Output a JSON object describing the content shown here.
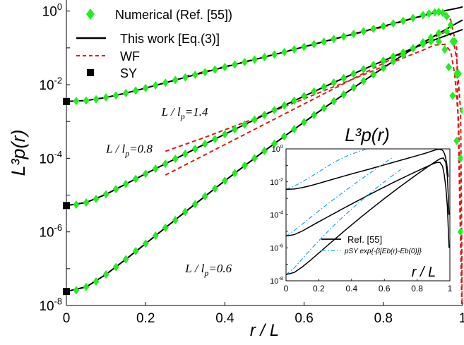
{
  "chart_data": [
    {
      "type": "line",
      "xlabel": "r / L",
      "ylabel": "L³p(r)",
      "yscale": "log",
      "xlim": [
        0,
        1
      ],
      "ylim": [
        1e-08,
        2
      ],
      "x_ticks": [
        "0",
        "0.2",
        "0.4",
        "0.6",
        "0.8",
        "1"
      ],
      "y_ticks": [
        {
          "base": "10",
          "exp": "-8"
        },
        {
          "base": "10",
          "exp": "-6"
        },
        {
          "base": "10",
          "exp": "-4"
        },
        {
          "base": "10",
          "exp": "-2"
        },
        {
          "base": "10",
          "exp": "0"
        }
      ],
      "legend": {
        "placement": "top-left",
        "entries": [
          {
            "label": "Numerical (Ref. [55])",
            "marker": "diamond",
            "color": "#22ee22"
          },
          {
            "label": "This work [Eq.(3)]",
            "marker": "line",
            "color": "#000000"
          },
          {
            "label": "WF",
            "marker": "dashed",
            "color": "#e01a1a"
          },
          {
            "label": "SY",
            "marker": "square",
            "color": "#000000"
          }
        ]
      },
      "annotations": [
        {
          "text": "L / lp=1.4",
          "main": "L / l",
          "sub": "p",
          "rest": "=1.4",
          "x": 0.24,
          "y": 0.00145
        },
        {
          "text": "L / lp=0.8",
          "main": "L / l",
          "sub": "p",
          "rest": "=0.8",
          "x": 0.1,
          "y": 0.00014
        },
        {
          "text": "L / lp=0.6",
          "main": "L / l",
          "sub": "p",
          "rest": "=0.6",
          "x": 0.3,
          "y": 8e-08
        }
      ],
      "series": [
        {
          "group": "L / lp=1.4",
          "sy_value": 0.0035,
          "x": [
            0,
            0.05,
            0.1,
            0.15,
            0.2,
            0.25,
            0.3,
            0.35,
            0.4,
            0.45,
            0.5,
            0.55,
            0.6,
            0.65,
            0.7,
            0.75,
            0.8,
            0.85,
            0.88,
            0.91,
            0.93,
            0.95,
            0.96,
            0.97,
            0.98,
            0.99,
            0.995,
            1.0
          ],
          "model": [
            0.0035,
            0.0037,
            0.0045,
            0.0059,
            0.0081,
            0.0113,
            0.0158,
            0.0219,
            0.0302,
            0.0412,
            0.0562,
            0.077,
            0.107,
            0.148,
            0.204,
            0.282,
            0.39,
            0.54,
            0.66,
            0.8,
            0.9,
            1.0,
            1.05,
            1.1,
            1.16,
            1.22,
            1.26,
            1.3
          ],
          "numerical_x": [
            0,
            0.025,
            0.05,
            0.075,
            0.1,
            0.125,
            0.15,
            0.175,
            0.2,
            0.225,
            0.25,
            0.275,
            0.3,
            0.325,
            0.35,
            0.375,
            0.4,
            0.425,
            0.45,
            0.475,
            0.5,
            0.525,
            0.55,
            0.575,
            0.6,
            0.625,
            0.65,
            0.675,
            0.7,
            0.725,
            0.75,
            0.775,
            0.8,
            0.825,
            0.85,
            0.875,
            0.9,
            0.915,
            0.93,
            0.94,
            0.95,
            0.96,
            0.97,
            0.98,
            0.99,
            1.0
          ],
          "numerical_y": [
            0.0035,
            0.0036,
            0.0037,
            0.004,
            0.0045,
            0.0051,
            0.0059,
            0.0069,
            0.0081,
            0.0096,
            0.0113,
            0.0134,
            0.0158,
            0.0186,
            0.0219,
            0.0257,
            0.0302,
            0.0353,
            0.0412,
            0.0481,
            0.0562,
            0.0659,
            0.077,
            0.091,
            0.107,
            0.126,
            0.148,
            0.174,
            0.204,
            0.24,
            0.282,
            0.33,
            0.39,
            0.46,
            0.54,
            0.65,
            0.78,
            0.86,
            0.93,
            0.95,
            0.9,
            0.72,
            0.42,
            0.15,
            0.02,
            0.002
          ],
          "wf_x": [
            0.3,
            0.4,
            0.5,
            0.6,
            0.7,
            0.8,
            0.88,
            0.92,
            0.95,
            0.97,
            0.985,
            1.0
          ],
          "wf_y": [
            0.0168,
            0.031,
            0.057,
            0.107,
            0.2,
            0.37,
            0.65,
            0.85,
            0.95,
            0.58,
            0.1,
            1e-09
          ]
        },
        {
          "group": "L / lp=0.8",
          "sy_value": 5.2e-06,
          "x": [
            0,
            0.05,
            0.1,
            0.15,
            0.2,
            0.25,
            0.3,
            0.35,
            0.4,
            0.45,
            0.5,
            0.55,
            0.6,
            0.65,
            0.7,
            0.75,
            0.8,
            0.85,
            0.88,
            0.91,
            0.93,
            0.95,
            0.96,
            0.97,
            0.98,
            0.99,
            0.995,
            1.0
          ],
          "model": [
            5.2e-06,
            6.3e-06,
            1.05e-05,
            2e-05,
            3.8e-05,
            7.1e-05,
            0.000132,
            0.000245,
            0.000451,
            0.000827,
            0.00151,
            0.00273,
            0.00488,
            0.00864,
            0.0151,
            0.0261,
            0.0446,
            0.0755,
            0.102,
            0.139,
            0.167,
            0.2,
            0.219,
            0.24,
            0.263,
            0.288,
            0.302,
            0.316
          ],
          "numerical_x": [
            0,
            0.025,
            0.05,
            0.075,
            0.1,
            0.125,
            0.15,
            0.175,
            0.2,
            0.225,
            0.25,
            0.275,
            0.3,
            0.325,
            0.35,
            0.375,
            0.4,
            0.425,
            0.45,
            0.475,
            0.5,
            0.525,
            0.55,
            0.575,
            0.6,
            0.625,
            0.65,
            0.675,
            0.7,
            0.725,
            0.75,
            0.775,
            0.8,
            0.825,
            0.85,
            0.875,
            0.9,
            0.92,
            0.94,
            0.955,
            0.965,
            0.975,
            0.985,
            0.995
          ],
          "numerical_y": [
            5.2e-06,
            5.5e-06,
            6.3e-06,
            7.9e-06,
            1.05e-05,
            1.45e-05,
            2e-05,
            2.75e-05,
            3.8e-05,
            5.2e-05,
            7.1e-05,
            9.7e-05,
            0.000132,
            0.00018,
            0.000245,
            0.000333,
            0.000451,
            0.000611,
            0.000827,
            0.00112,
            0.00151,
            0.00204,
            0.00273,
            0.00366,
            0.00488,
            0.0065,
            0.00864,
            0.0114,
            0.0151,
            0.0199,
            0.0261,
            0.0342,
            0.0446,
            0.058,
            0.0755,
            0.098,
            0.127,
            0.15,
            0.148,
            0.09,
            0.03,
            0.005,
            0.0003,
            1e-06
          ],
          "wf_x": [
            0.25,
            0.35,
            0.45,
            0.55,
            0.65,
            0.75,
            0.85,
            0.9,
            0.93,
            0.955,
            0.97,
            0.98,
            0.99,
            1.0
          ],
          "wf_y": [
            0.000155,
            0.000372,
            0.00095,
            0.00251,
            0.00684,
            0.0186,
            0.0532,
            0.087,
            0.12,
            0.125,
            0.08,
            0.02,
            0.001,
            1e-08
          ]
        },
        {
          "group": "L / lp=0.6",
          "sy_value": 2.4e-08,
          "x": [
            0,
            0.05,
            0.1,
            0.15,
            0.2,
            0.25,
            0.3,
            0.35,
            0.4,
            0.45,
            0.5,
            0.55,
            0.6,
            0.65,
            0.7,
            0.75,
            0.8,
            0.85,
            0.88,
            0.91,
            0.93,
            0.95,
            0.96,
            0.97,
            0.98,
            0.99,
            0.995,
            1.0
          ],
          "model": [
            2.4e-08,
            3.2e-08,
            7e-08,
            1.8e-07,
            4.8e-07,
            1.3e-06,
            3.5e-06,
            9.3e-06,
            2.45e-05,
            6.3e-05,
            0.000159,
            0.000394,
            0.000962,
            0.00231,
            0.00544,
            0.0126,
            0.0288,
            0.0645,
            0.102,
            0.16,
            0.214,
            0.285,
            0.328,
            0.378,
            0.435,
            0.5,
            0.535,
            0.57
          ],
          "numerical_x": [
            0,
            0.025,
            0.05,
            0.075,
            0.1,
            0.125,
            0.15,
            0.175,
            0.2,
            0.225,
            0.25,
            0.275,
            0.3,
            0.325,
            0.35,
            0.375,
            0.4,
            0.425,
            0.45,
            0.475,
            0.5,
            0.525,
            0.55,
            0.575,
            0.6,
            0.625,
            0.65,
            0.675,
            0.7,
            0.725,
            0.75,
            0.775,
            0.8,
            0.825,
            0.85,
            0.875,
            0.9,
            0.92,
            0.94,
            0.96,
            0.975,
            0.985,
            0.995
          ],
          "numerical_y": [
            2.4e-08,
            2.6e-08,
            3.2e-08,
            4.5e-08,
            7e-08,
            1.1e-07,
            1.8e-07,
            3e-07,
            4.8e-07,
            7.9e-07,
            1.3e-06,
            2.1e-06,
            3.5e-06,
            5.7e-06,
            9.3e-06,
            1.5e-05,
            2.45e-05,
            3.95e-05,
            6.3e-05,
            0.0001,
            0.000159,
            0.00025,
            0.000394,
            0.000618,
            0.000962,
            0.0015,
            0.00231,
            0.00355,
            0.00544,
            0.0083,
            0.0126,
            0.0191,
            0.0288,
            0.0432,
            0.0645,
            0.096,
            0.142,
            0.19,
            0.25,
            0.28,
            0.15,
            0.02,
            0.0001
          ],
          "wf_x": [
            0.25,
            0.35,
            0.45,
            0.55,
            0.65,
            0.75,
            0.85,
            0.9,
            0.93,
            0.96,
            0.975,
            0.985,
            0.995,
            1.0
          ],
          "wf_y": [
            3.5e-05,
            0.000125,
            0.000445,
            0.00159,
            0.00566,
            0.0202,
            0.072,
            0.135,
            0.2,
            0.28,
            0.2,
            0.05,
            0.002,
            1e-09
          ]
        }
      ]
    },
    {
      "type": "line",
      "title": "L³p(r)",
      "xlabel": "r / L",
      "yscale": "log",
      "xlim": [
        0,
        1
      ],
      "ylim": [
        1e-08,
        1
      ],
      "x_ticks": [
        "0",
        "0.2",
        "0.4",
        "0.6",
        "0.8",
        "1"
      ],
      "y_ticks": [
        {
          "base": "10",
          "exp": "-8"
        },
        {
          "base": "10",
          "exp": "-6"
        },
        {
          "base": "10",
          "exp": "-4"
        },
        {
          "base": "10",
          "exp": "-2"
        },
        {
          "base": "10",
          "exp": "0"
        }
      ],
      "legend": {
        "placement": "bottom-right",
        "entries": [
          {
            "label": "Ref. [55]",
            "marker": "line",
            "color": "#000000"
          },
          {
            "label": "pSY exp{-β[Eb(r)-Eb(0)]}",
            "marker": "dash-dot",
            "color": "#1aa6d8"
          }
        ]
      },
      "series": [
        {
          "group": "L / lp=1.4",
          "x": [
            0,
            0.05,
            0.1,
            0.15,
            0.2,
            0.25,
            0.3,
            0.35,
            0.4,
            0.45,
            0.5,
            0.55,
            0.6,
            0.65,
            0.7,
            0.75,
            0.8,
            0.85,
            0.88,
            0.91,
            0.93,
            0.95,
            0.96,
            0.97,
            0.98,
            0.99
          ],
          "ref": [
            0.0035,
            0.0037,
            0.0045,
            0.0059,
            0.0081,
            0.0113,
            0.0158,
            0.0219,
            0.0302,
            0.0412,
            0.0562,
            0.077,
            0.107,
            0.148,
            0.204,
            0.282,
            0.39,
            0.54,
            0.68,
            0.85,
            0.95,
            0.9,
            0.72,
            0.42,
            0.15,
            0.02
          ],
          "approx_x": [
            0,
            0.05,
            0.1,
            0.15,
            0.2,
            0.25,
            0.3,
            0.35,
            0.4,
            0.45,
            0.5,
            0.55
          ],
          "approx": [
            0.0035,
            0.0055,
            0.0102,
            0.0199,
            0.0405,
            0.085,
            0.166,
            0.296,
            0.48,
            0.72,
            1.03,
            1.45
          ]
        },
        {
          "group": "L / lp=0.8",
          "x": [
            0,
            0.05,
            0.1,
            0.15,
            0.2,
            0.25,
            0.3,
            0.35,
            0.4,
            0.45,
            0.5,
            0.55,
            0.6,
            0.65,
            0.7,
            0.75,
            0.8,
            0.85,
            0.9,
            0.92,
            0.94,
            0.955,
            0.965,
            0.975,
            0.985,
            0.995
          ],
          "ref": [
            5.2e-06,
            6.3e-06,
            1.05e-05,
            2e-05,
            3.8e-05,
            7.1e-05,
            0.000132,
            0.000245,
            0.000451,
            0.000827,
            0.00151,
            0.00273,
            0.00488,
            0.00864,
            0.0151,
            0.0261,
            0.0446,
            0.0755,
            0.127,
            0.15,
            0.148,
            0.09,
            0.03,
            0.005,
            0.0003,
            1e-06
          ],
          "approx_x": [
            0,
            0.05,
            0.1,
            0.15,
            0.2,
            0.25,
            0.3,
            0.35,
            0.4,
            0.45,
            0.5,
            0.55,
            0.6,
            0.65
          ],
          "approx": [
            5.2e-06,
            1.1e-05,
            2.75e-05,
            7e-05,
            0.000174,
            0.000425,
            0.00102,
            0.0024,
            0.0055,
            0.0125,
            0.028,
            0.062,
            0.138,
            0.3
          ]
        },
        {
          "group": "L / lp=0.6",
          "x": [
            0,
            0.05,
            0.1,
            0.15,
            0.2,
            0.25,
            0.3,
            0.35,
            0.4,
            0.45,
            0.5,
            0.55,
            0.6,
            0.65,
            0.7,
            0.75,
            0.8,
            0.85,
            0.9,
            0.92,
            0.94,
            0.96,
            0.975,
            0.985,
            0.995
          ],
          "ref": [
            2.4e-08,
            3.2e-08,
            7e-08,
            1.8e-07,
            4.8e-07,
            1.3e-06,
            3.5e-06,
            9.3e-06,
            2.45e-05,
            6.3e-05,
            0.000159,
            0.000394,
            0.000962,
            0.00231,
            0.00544,
            0.0126,
            0.0288,
            0.0645,
            0.142,
            0.19,
            0.25,
            0.28,
            0.15,
            0.02,
            0.0001
          ],
          "approx_x": [
            0,
            0.05,
            0.1,
            0.15,
            0.2,
            0.25,
            0.3,
            0.35,
            0.4,
            0.45,
            0.5,
            0.55,
            0.6,
            0.65,
            0.7
          ],
          "approx": [
            2.4e-08,
            6e-08,
            2.2e-07,
            7.9e-07,
            2.7e-06,
            8.7e-06,
            2.7e-05,
            8e-05,
            0.000225,
            0.0006,
            0.0016,
            0.0041,
            0.01,
            0.024,
            0.056
          ]
        }
      ]
    }
  ]
}
